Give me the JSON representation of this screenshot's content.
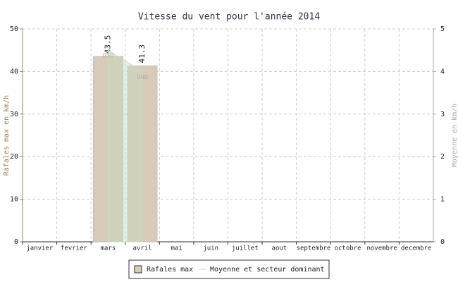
{
  "chart_data": {
    "type": "bar",
    "title": "Vitesse du vent pour l'année 2014",
    "categories": [
      "janvier",
      "fevrier",
      "mars",
      "avril",
      "mai",
      "juin",
      "juillet",
      "aout",
      "septembre",
      "octobre",
      "novembre",
      "decembre"
    ],
    "ylabel": "Rafales max en km/h",
    "y2label": "Moyenne en km/h",
    "ylim": [
      0,
      50
    ],
    "yticks": [
      0,
      10,
      20,
      30,
      40,
      50
    ],
    "y2lim": [
      0,
      5
    ],
    "y2ticks": [
      0,
      1,
      2,
      3,
      4,
      5
    ],
    "grid": true,
    "legend": "bottom",
    "series": [
      {
        "name": "Rafales max",
        "color": "#d8cbb8",
        "values": [
          null,
          null,
          43.5,
          41.3,
          null,
          null,
          null,
          null,
          null,
          null,
          null,
          null
        ]
      },
      {
        "name": "Moyenne et secteur dominant",
        "color": "#c8dcc0",
        "axis": "y2",
        "values": [
          null,
          null,
          4.5,
          4.0,
          null,
          null,
          null,
          null,
          null,
          null,
          null,
          null
        ],
        "sectors": [
          null,
          null,
          "OSO",
          "ONO",
          null,
          null,
          null,
          null,
          null,
          null,
          null,
          null
        ]
      }
    ]
  }
}
